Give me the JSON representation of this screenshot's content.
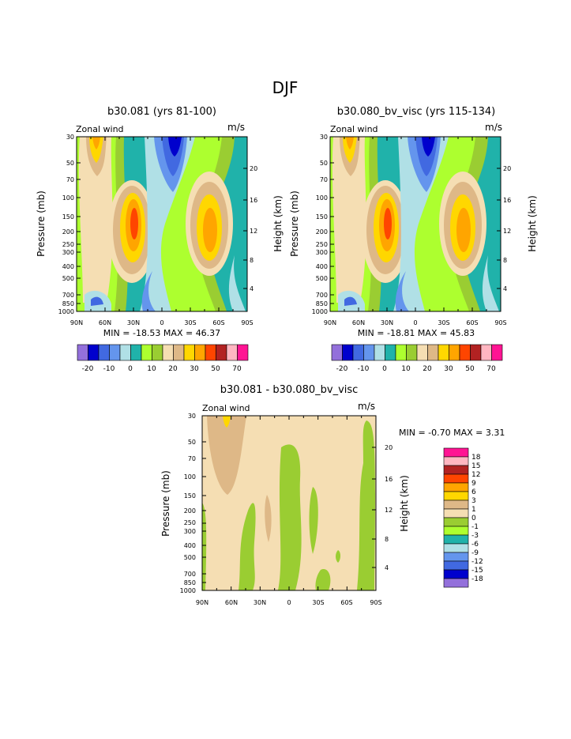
{
  "page_title": "DJF",
  "colors": {
    "scale": [
      "#9370db",
      "#0000cd",
      "#4169e1",
      "#6495ed",
      "#b0e0e6",
      "#20b2aa",
      "#adff2f",
      "#9acd32",
      "#f5deb3",
      "#deb887",
      "#ffd700",
      "#ffa500",
      "#ff4500",
      "#b22222",
      "#ffb6c1",
      "#ff1493"
    ],
    "diff_scale": [
      "#9370db",
      "#0000cd",
      "#4169e1",
      "#6495ed",
      "#b0e0e6",
      "#20b2aa",
      "#adff2f",
      "#9acd32",
      "#f5deb3",
      "#deb887",
      "#ffd700",
      "#ffa500",
      "#ff4500",
      "#b22222",
      "#ffb6c1",
      "#ff1493"
    ]
  },
  "chart_data": [
    {
      "type": "contour",
      "title": "b30.081 (yrs 81-100)",
      "variable": "Zonal wind",
      "units": "m/s",
      "ylabel": "Pressure (mb)",
      "ylabel_right": "Height (km)",
      "x_ticks": [
        "90N",
        "60N",
        "30N",
        "0",
        "30S",
        "60S",
        "90S"
      ],
      "y_ticks": [
        "30",
        "50",
        "70",
        "100",
        "150",
        "200",
        "250",
        "300",
        "400",
        "500",
        "700",
        "850",
        "1000"
      ],
      "y_ticks_right": [
        "20",
        "16",
        "12",
        "8",
        "4"
      ],
      "min_max": "MIN = -18.53   MAX =  46.37",
      "colorbar_labels": [
        "-20",
        "-10",
        "0",
        "10",
        "20",
        "30",
        "50",
        "70"
      ]
    },
    {
      "type": "contour",
      "title": "b30.080_bv_visc (yrs 115-134)",
      "variable": "Zonal wind",
      "units": "m/s",
      "ylabel": "Pressure (mb)",
      "ylabel_right": "Height (km)",
      "x_ticks": [
        "90N",
        "60N",
        "30N",
        "0",
        "30S",
        "60S",
        "90S"
      ],
      "y_ticks": [
        "30",
        "50",
        "70",
        "100",
        "150",
        "200",
        "250",
        "300",
        "400",
        "500",
        "700",
        "850",
        "1000"
      ],
      "y_ticks_right": [
        "20",
        "16",
        "12",
        "8",
        "4"
      ],
      "min_max": "MIN = -18.81   MAX =  45.83",
      "colorbar_labels": [
        "-20",
        "-10",
        "0",
        "10",
        "20",
        "30",
        "50",
        "70"
      ]
    },
    {
      "type": "contour",
      "title": "b30.081 - b30.080_bv_visc",
      "variable": "Zonal wind",
      "units": "m/s",
      "ylabel": "Pressure (mb)",
      "ylabel_right": "Height (km)",
      "x_ticks": [
        "90N",
        "60N",
        "30N",
        "0",
        "30S",
        "60S",
        "90S"
      ],
      "y_ticks": [
        "30",
        "50",
        "70",
        "100",
        "150",
        "200",
        "250",
        "300",
        "400",
        "500",
        "700",
        "850",
        "1000"
      ],
      "y_ticks_right": [
        "20",
        "16",
        "12",
        "8",
        "4"
      ],
      "min_max": "MIN =  -0.70   MAX =   3.31",
      "colorbar_labels": [
        "18",
        "15",
        "12",
        "9",
        "6",
        "3",
        "1",
        "0",
        "-1",
        "-3",
        "-6",
        "-9",
        "-12",
        "-15",
        "-18"
      ]
    }
  ]
}
